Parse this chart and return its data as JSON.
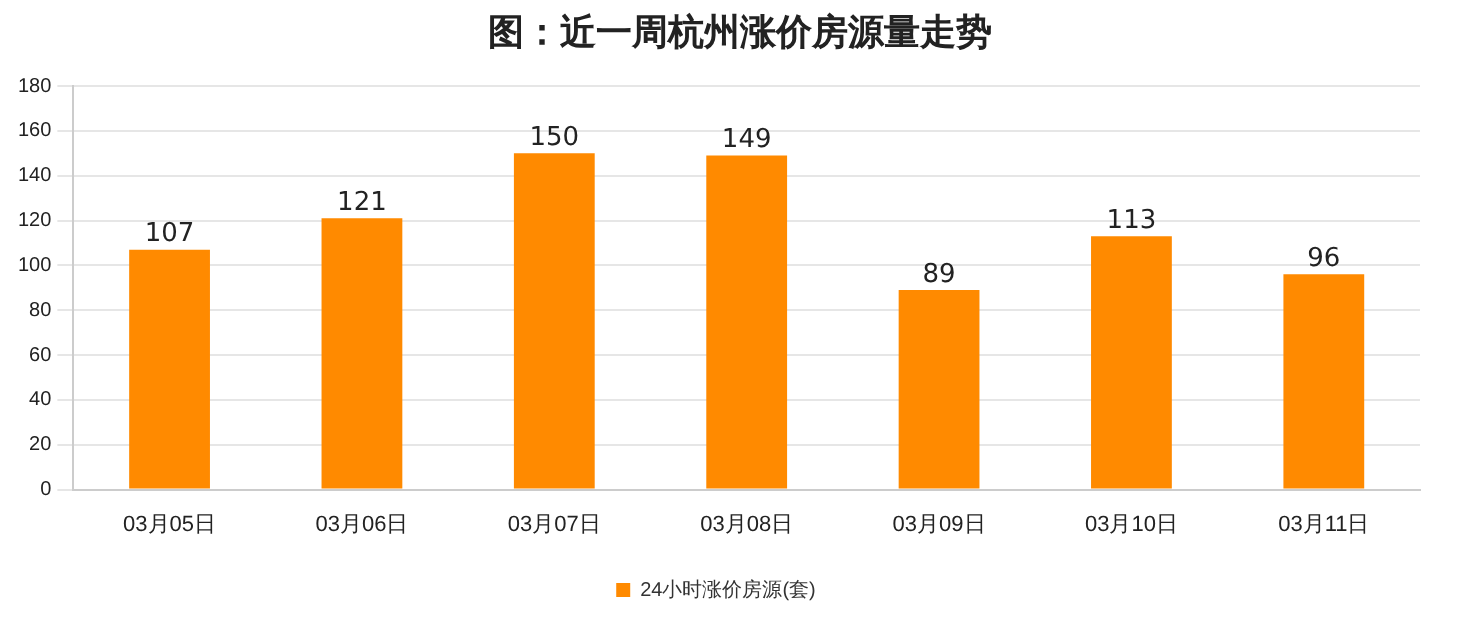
{
  "chart_data": {
    "type": "bar",
    "title": "图：近一周杭州涨价房源量走势",
    "categories": [
      "03月05日",
      "03月06日",
      "03月07日",
      "03月08日",
      "03月09日",
      "03月10日",
      "03月11日"
    ],
    "series": [
      {
        "name": "24小时涨价房源(套)",
        "color": "#ff8a00",
        "values": [
          107,
          121,
          150,
          149,
          89,
          113,
          96
        ]
      }
    ],
    "ylim": [
      0,
      180
    ],
    "yticks": [
      0,
      20,
      40,
      60,
      80,
      100,
      120,
      140,
      160,
      180
    ],
    "grid": "y",
    "legend": "bottom",
    "data_labels": true
  }
}
